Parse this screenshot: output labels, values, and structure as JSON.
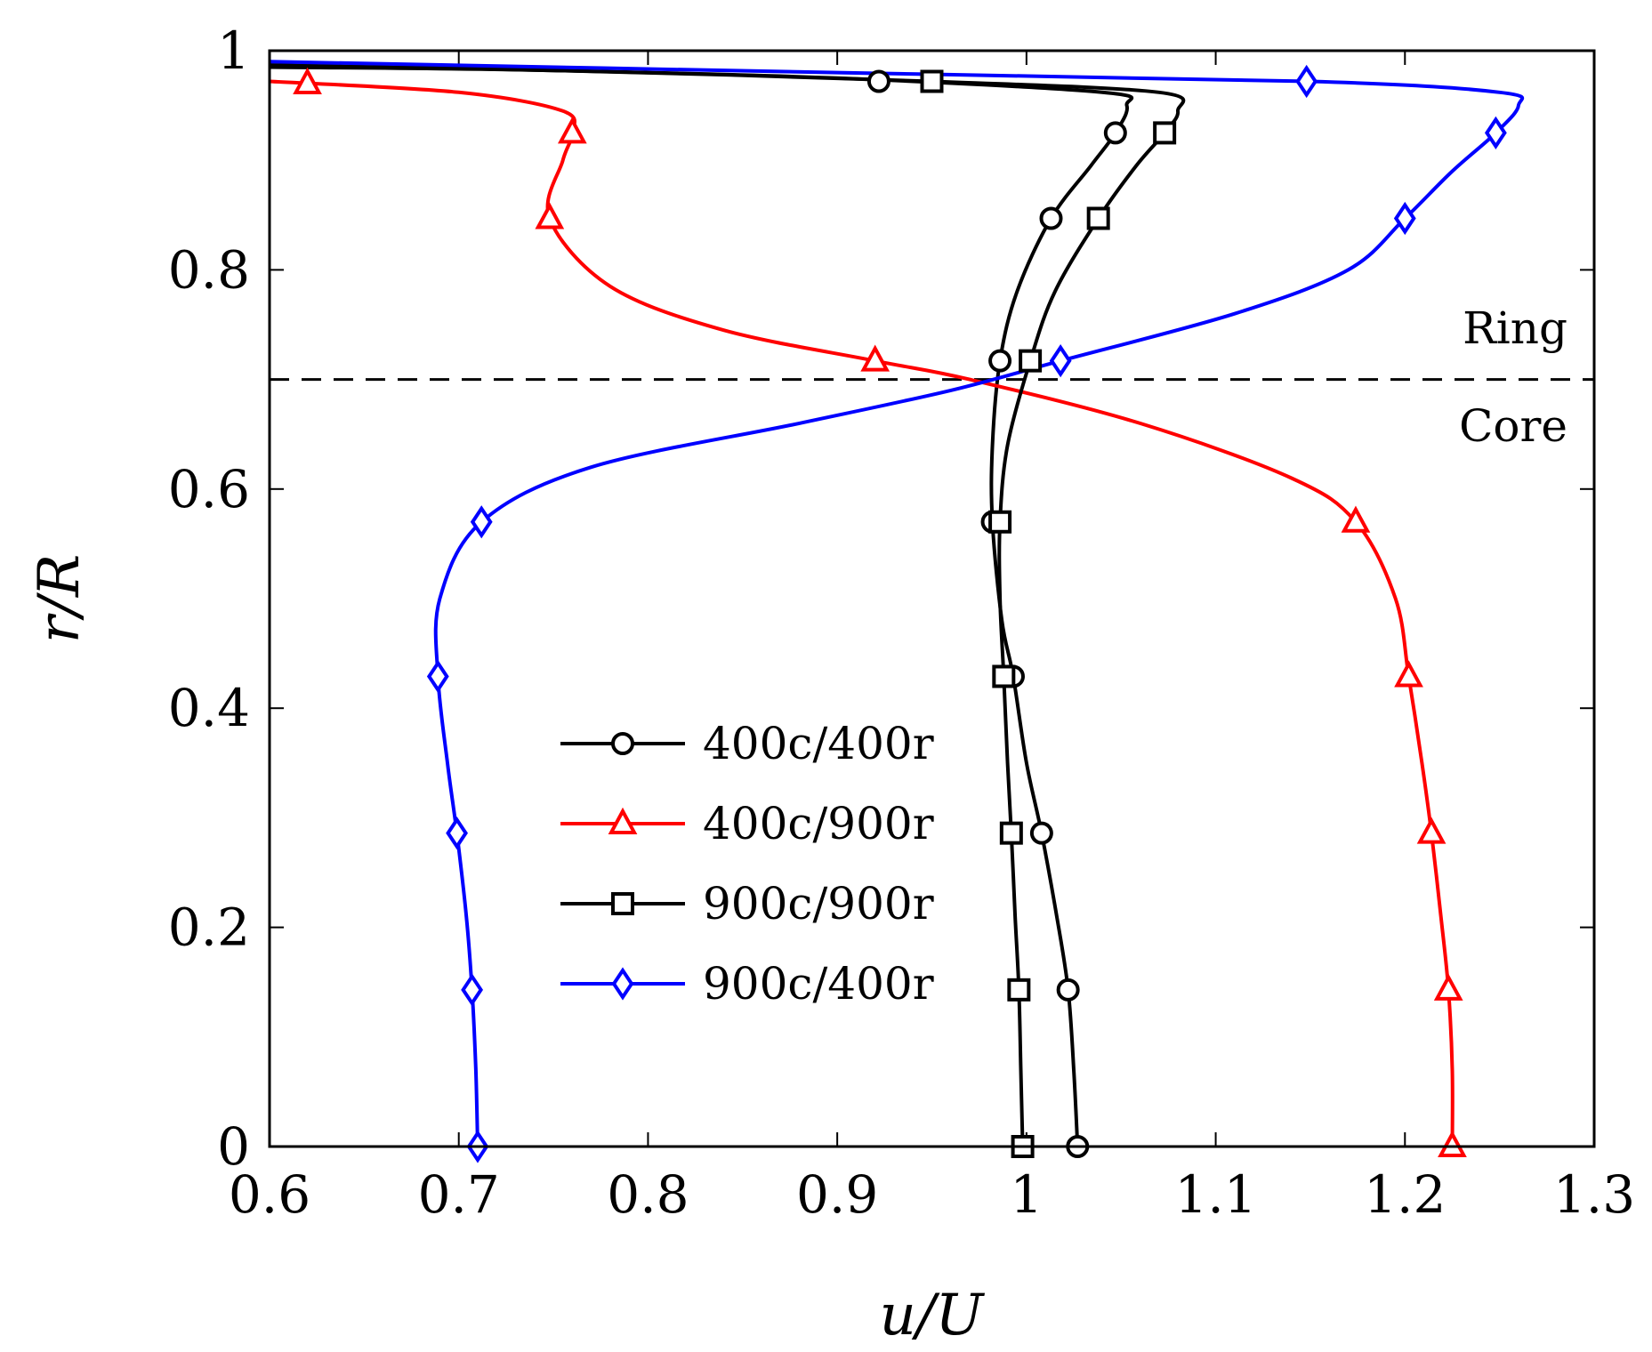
{
  "chart_data": {
    "type": "line",
    "title": "",
    "xlabel": "u/U",
    "ylabel": "r/R",
    "xlim": [
      0.6,
      1.3
    ],
    "ylim": [
      0,
      1
    ],
    "xticks": [
      0.6,
      0.7,
      0.8,
      0.9,
      1.0,
      1.1,
      1.2,
      1.3
    ],
    "xtick_labels": [
      "0.6",
      "0.7",
      "0.8",
      "0.9",
      "1",
      "1.1",
      "1.2",
      "1.3"
    ],
    "yticks": [
      0,
      0.2,
      0.4,
      0.6,
      0.8,
      1.0
    ],
    "ytick_labels": [
      "0",
      "0.2",
      "0.4",
      "0.6",
      "0.8",
      "1"
    ],
    "grid": false,
    "legend_position": "center-left",
    "reference_line": {
      "y": 0.7,
      "style": "dashed"
    },
    "annotations": [
      {
        "text": "Ring",
        "x": 1.27,
        "y": 0.745
      },
      {
        "text": "Core",
        "x": 1.27,
        "y": 0.655
      }
    ],
    "series": [
      {
        "name": "400c/400r",
        "color": "#000000",
        "marker": "circle",
        "curve": [
          [
            1.027,
            0.0
          ],
          [
            1.025,
            0.07
          ],
          [
            1.022,
            0.143
          ],
          [
            1.016,
            0.21
          ],
          [
            1.008,
            0.286
          ],
          [
            1.0,
            0.35
          ],
          [
            0.993,
            0.429
          ],
          [
            0.987,
            0.48
          ],
          [
            0.982,
            0.57
          ],
          [
            0.982,
            0.64
          ],
          [
            0.986,
            0.717
          ],
          [
            0.995,
            0.78
          ],
          [
            1.013,
            0.847
          ],
          [
            1.034,
            0.895
          ],
          [
            1.047,
            0.925
          ],
          [
            1.053,
            0.95
          ],
          [
            1.04,
            0.962
          ],
          [
            0.9,
            0.975
          ],
          [
            0.75,
            0.982
          ],
          [
            0.6,
            0.987
          ]
        ],
        "markers": [
          [
            1.027,
            0.0
          ],
          [
            1.022,
            0.143
          ],
          [
            1.008,
            0.286
          ],
          [
            0.993,
            0.429
          ],
          [
            0.982,
            0.57
          ],
          [
            0.986,
            0.717
          ],
          [
            1.013,
            0.847
          ],
          [
            1.047,
            0.925
          ],
          [
            0.922,
            0.972
          ]
        ]
      },
      {
        "name": "400c/900r",
        "color": "#ff0000",
        "marker": "triangle",
        "curve": [
          [
            1.225,
            0.0
          ],
          [
            1.225,
            0.07
          ],
          [
            1.223,
            0.143
          ],
          [
            1.219,
            0.21
          ],
          [
            1.214,
            0.286
          ],
          [
            1.209,
            0.35
          ],
          [
            1.202,
            0.429
          ],
          [
            1.195,
            0.5
          ],
          [
            1.174,
            0.57
          ],
          [
            1.14,
            0.61
          ],
          [
            1.06,
            0.66
          ],
          [
            0.97,
            0.7
          ],
          [
            0.92,
            0.717
          ],
          [
            0.84,
            0.745
          ],
          [
            0.78,
            0.785
          ],
          [
            0.748,
            0.847
          ],
          [
            0.755,
            0.9
          ],
          [
            0.76,
            0.925
          ],
          [
            0.755,
            0.945
          ],
          [
            0.7,
            0.962
          ],
          [
            0.6,
            0.972
          ]
        ],
        "markers": [
          [
            1.225,
            0.0
          ],
          [
            1.223,
            0.143
          ],
          [
            1.214,
            0.286
          ],
          [
            1.202,
            0.429
          ],
          [
            1.174,
            0.57
          ],
          [
            0.92,
            0.717
          ],
          [
            0.748,
            0.847
          ],
          [
            0.76,
            0.925
          ],
          [
            0.62,
            0.97
          ]
        ]
      },
      {
        "name": "900c/900r",
        "color": "#000000",
        "marker": "square",
        "curve": [
          [
            0.998,
            0.0
          ],
          [
            0.997,
            0.07
          ],
          [
            0.996,
            0.143
          ],
          [
            0.994,
            0.21
          ],
          [
            0.992,
            0.286
          ],
          [
            0.99,
            0.35
          ],
          [
            0.988,
            0.429
          ],
          [
            0.986,
            0.5
          ],
          [
            0.986,
            0.57
          ],
          [
            0.99,
            0.64
          ],
          [
            1.002,
            0.717
          ],
          [
            1.015,
            0.78
          ],
          [
            1.038,
            0.847
          ],
          [
            1.058,
            0.895
          ],
          [
            1.073,
            0.925
          ],
          [
            1.08,
            0.945
          ],
          [
            1.07,
            0.962
          ],
          [
            0.95,
            0.972
          ],
          [
            0.75,
            0.982
          ],
          [
            0.6,
            0.985
          ]
        ],
        "markers": [
          [
            0.998,
            0.0
          ],
          [
            0.996,
            0.143
          ],
          [
            0.992,
            0.286
          ],
          [
            0.988,
            0.429
          ],
          [
            0.986,
            0.57
          ],
          [
            1.002,
            0.717
          ],
          [
            1.038,
            0.847
          ],
          [
            1.073,
            0.925
          ],
          [
            0.95,
            0.972
          ]
        ]
      },
      {
        "name": "900c/400r",
        "color": "#0000ff",
        "marker": "diamond",
        "curve": [
          [
            0.71,
            0.0
          ],
          [
            0.709,
            0.07
          ],
          [
            0.707,
            0.143
          ],
          [
            0.704,
            0.21
          ],
          [
            0.699,
            0.286
          ],
          [
            0.694,
            0.35
          ],
          [
            0.689,
            0.429
          ],
          [
            0.69,
            0.5
          ],
          [
            0.712,
            0.57
          ],
          [
            0.77,
            0.62
          ],
          [
            0.88,
            0.66
          ],
          [
            0.96,
            0.69
          ],
          [
            1.018,
            0.717
          ],
          [
            1.11,
            0.76
          ],
          [
            1.17,
            0.8
          ],
          [
            1.2,
            0.847
          ],
          [
            1.225,
            0.89
          ],
          [
            1.248,
            0.925
          ],
          [
            1.26,
            0.95
          ],
          [
            1.25,
            0.962
          ],
          [
            1.15,
            0.972
          ],
          [
            0.9,
            0.98
          ],
          [
            0.6,
            0.99
          ]
        ],
        "markers": [
          [
            0.71,
            0.0
          ],
          [
            0.707,
            0.143
          ],
          [
            0.699,
            0.286
          ],
          [
            0.689,
            0.429
          ],
          [
            0.712,
            0.57
          ],
          [
            1.018,
            0.717
          ],
          [
            1.2,
            0.847
          ],
          [
            1.248,
            0.925
          ],
          [
            1.148,
            0.972
          ]
        ]
      }
    ]
  }
}
